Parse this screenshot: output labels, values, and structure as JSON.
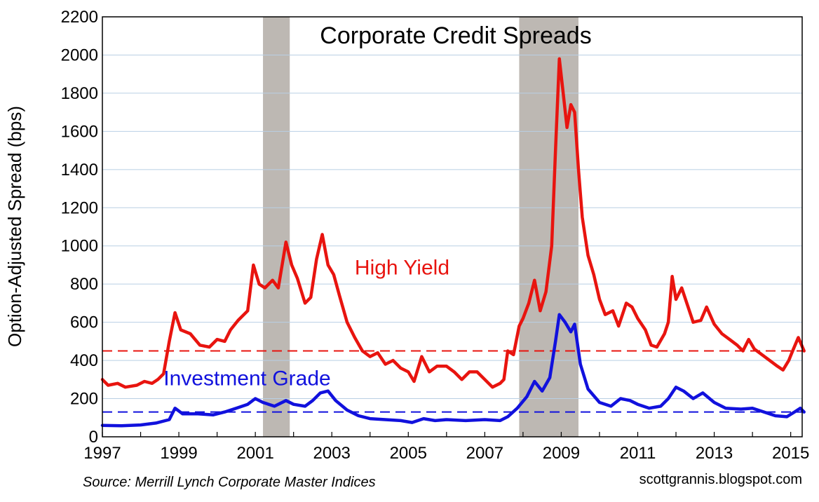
{
  "chart_data": {
    "type": "line",
    "title": "Corporate Credit Spreads",
    "ylabel": "Option-Adjusted Spread (bps)",
    "xlabel": "",
    "xlim": [
      1997,
      2015.3
    ],
    "ylim": [
      0,
      2200
    ],
    "yticks": [
      "0",
      "200",
      "400",
      "600",
      "800",
      "1000",
      "1200",
      "1400",
      "1600",
      "1800",
      "2000",
      "2200"
    ],
    "xticks": [
      "1997",
      "1999",
      "2001",
      "2003",
      "2005",
      "2007",
      "2009",
      "2011",
      "2013",
      "2015"
    ],
    "grid": "horizontal",
    "recessions": [
      [
        2001.2,
        2001.9
      ],
      [
        2007.9,
        2009.45
      ]
    ],
    "reference_lines": [
      {
        "series": "High Yield",
        "value": 450,
        "style": "dashed",
        "color": "#e8140f"
      },
      {
        "series": "Investment Grade",
        "value": 130,
        "style": "dashed",
        "color": "#1111dd"
      }
    ],
    "source": "Source: Merrill Lynch Corporate Master Indices",
    "credit": "scottgrannis.blogspot.com",
    "series": [
      {
        "name": "High Yield",
        "color": "#e8140f",
        "label_pos": [
          2003.6,
          850
        ],
        "points": [
          [
            1997.0,
            300
          ],
          [
            1997.15,
            270
          ],
          [
            1997.4,
            280
          ],
          [
            1997.6,
            260
          ],
          [
            1997.9,
            270
          ],
          [
            1998.1,
            290
          ],
          [
            1998.3,
            280
          ],
          [
            1998.45,
            300
          ],
          [
            1998.6,
            330
          ],
          [
            1998.75,
            500
          ],
          [
            1998.9,
            650
          ],
          [
            1999.05,
            560
          ],
          [
            1999.3,
            540
          ],
          [
            1999.55,
            480
          ],
          [
            1999.8,
            470
          ],
          [
            2000.0,
            510
          ],
          [
            2000.2,
            500
          ],
          [
            2000.35,
            560
          ],
          [
            2000.55,
            610
          ],
          [
            2000.8,
            660
          ],
          [
            2000.95,
            900
          ],
          [
            2001.1,
            800
          ],
          [
            2001.25,
            780
          ],
          [
            2001.45,
            820
          ],
          [
            2001.6,
            780
          ],
          [
            2001.8,
            1020
          ],
          [
            2001.95,
            900
          ],
          [
            2002.1,
            830
          ],
          [
            2002.3,
            700
          ],
          [
            2002.45,
            730
          ],
          [
            2002.6,
            930
          ],
          [
            2002.75,
            1060
          ],
          [
            2002.9,
            900
          ],
          [
            2003.05,
            850
          ],
          [
            2003.2,
            740
          ],
          [
            2003.4,
            600
          ],
          [
            2003.6,
            520
          ],
          [
            2003.8,
            450
          ],
          [
            2004.0,
            420
          ],
          [
            2004.2,
            440
          ],
          [
            2004.4,
            380
          ],
          [
            2004.6,
            400
          ],
          [
            2004.8,
            360
          ],
          [
            2005.0,
            340
          ],
          [
            2005.15,
            290
          ],
          [
            2005.35,
            420
          ],
          [
            2005.55,
            340
          ],
          [
            2005.75,
            370
          ],
          [
            2006.0,
            370
          ],
          [
            2006.2,
            340
          ],
          [
            2006.4,
            300
          ],
          [
            2006.6,
            340
          ],
          [
            2006.8,
            340
          ],
          [
            2007.0,
            300
          ],
          [
            2007.2,
            260
          ],
          [
            2007.4,
            280
          ],
          [
            2007.5,
            300
          ],
          [
            2007.6,
            450
          ],
          [
            2007.75,
            430
          ],
          [
            2007.9,
            580
          ],
          [
            2008.0,
            620
          ],
          [
            2008.15,
            700
          ],
          [
            2008.3,
            820
          ],
          [
            2008.45,
            660
          ],
          [
            2008.6,
            760
          ],
          [
            2008.75,
            1000
          ],
          [
            2008.85,
            1500
          ],
          [
            2008.95,
            1980
          ],
          [
            2009.05,
            1800
          ],
          [
            2009.15,
            1620
          ],
          [
            2009.25,
            1740
          ],
          [
            2009.35,
            1700
          ],
          [
            2009.45,
            1400
          ],
          [
            2009.55,
            1150
          ],
          [
            2009.7,
            950
          ],
          [
            2009.85,
            850
          ],
          [
            2010.0,
            720
          ],
          [
            2010.15,
            640
          ],
          [
            2010.35,
            660
          ],
          [
            2010.5,
            580
          ],
          [
            2010.7,
            700
          ],
          [
            2010.85,
            680
          ],
          [
            2011.0,
            620
          ],
          [
            2011.2,
            560
          ],
          [
            2011.35,
            480
          ],
          [
            2011.5,
            470
          ],
          [
            2011.7,
            540
          ],
          [
            2011.8,
            600
          ],
          [
            2011.9,
            840
          ],
          [
            2012.0,
            720
          ],
          [
            2012.15,
            780
          ],
          [
            2012.3,
            690
          ],
          [
            2012.45,
            600
          ],
          [
            2012.65,
            610
          ],
          [
            2012.8,
            680
          ],
          [
            2013.0,
            590
          ],
          [
            2013.2,
            540
          ],
          [
            2013.4,
            510
          ],
          [
            2013.6,
            480
          ],
          [
            2013.75,
            450
          ],
          [
            2013.9,
            510
          ],
          [
            2014.05,
            460
          ],
          [
            2014.25,
            430
          ],
          [
            2014.45,
            400
          ],
          [
            2014.65,
            370
          ],
          [
            2014.8,
            350
          ],
          [
            2014.95,
            400
          ],
          [
            2015.05,
            450
          ],
          [
            2015.2,
            520
          ],
          [
            2015.35,
            450
          ]
        ]
      },
      {
        "name": "Investment Grade",
        "color": "#1111dd",
        "label_pos": [
          1998.6,
          270
        ],
        "points": [
          [
            1997.0,
            60
          ],
          [
            1997.5,
            58
          ],
          [
            1998.0,
            62
          ],
          [
            1998.4,
            72
          ],
          [
            1998.75,
            90
          ],
          [
            1998.9,
            150
          ],
          [
            1999.1,
            120
          ],
          [
            1999.5,
            120
          ],
          [
            1999.9,
            115
          ],
          [
            2000.2,
            130
          ],
          [
            2000.5,
            150
          ],
          [
            2000.8,
            170
          ],
          [
            2001.0,
            200
          ],
          [
            2001.2,
            180
          ],
          [
            2001.5,
            160
          ],
          [
            2001.8,
            190
          ],
          [
            2002.0,
            170
          ],
          [
            2002.3,
            160
          ],
          [
            2002.5,
            190
          ],
          [
            2002.7,
            230
          ],
          [
            2002.9,
            240
          ],
          [
            2003.1,
            190
          ],
          [
            2003.4,
            140
          ],
          [
            2003.7,
            110
          ],
          [
            2004.0,
            95
          ],
          [
            2004.4,
            90
          ],
          [
            2004.8,
            85
          ],
          [
            2005.1,
            75
          ],
          [
            2005.4,
            95
          ],
          [
            2005.7,
            85
          ],
          [
            2006.0,
            90
          ],
          [
            2006.5,
            85
          ],
          [
            2007.0,
            90
          ],
          [
            2007.4,
            85
          ],
          [
            2007.6,
            105
          ],
          [
            2007.85,
            150
          ],
          [
            2008.1,
            210
          ],
          [
            2008.3,
            290
          ],
          [
            2008.5,
            240
          ],
          [
            2008.7,
            310
          ],
          [
            2008.85,
            500
          ],
          [
            2008.95,
            640
          ],
          [
            2009.1,
            600
          ],
          [
            2009.25,
            550
          ],
          [
            2009.35,
            590
          ],
          [
            2009.5,
            380
          ],
          [
            2009.7,
            250
          ],
          [
            2010.0,
            180
          ],
          [
            2010.3,
            160
          ],
          [
            2010.55,
            200
          ],
          [
            2010.8,
            190
          ],
          [
            2011.0,
            170
          ],
          [
            2011.3,
            150
          ],
          [
            2011.6,
            160
          ],
          [
            2011.8,
            200
          ],
          [
            2012.0,
            260
          ],
          [
            2012.2,
            240
          ],
          [
            2012.45,
            200
          ],
          [
            2012.7,
            230
          ],
          [
            2013.0,
            180
          ],
          [
            2013.3,
            150
          ],
          [
            2013.7,
            145
          ],
          [
            2014.0,
            150
          ],
          [
            2014.3,
            130
          ],
          [
            2014.6,
            110
          ],
          [
            2014.9,
            105
          ],
          [
            2015.1,
            130
          ],
          [
            2015.25,
            150
          ],
          [
            2015.35,
            130
          ]
        ]
      }
    ]
  }
}
